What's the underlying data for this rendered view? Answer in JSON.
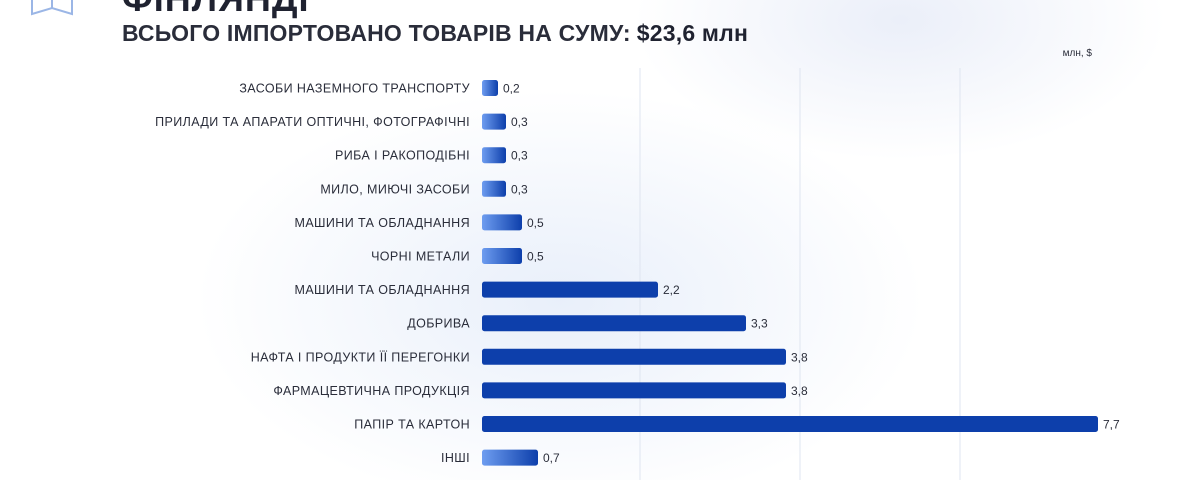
{
  "header": {
    "title_partial": "ФІНЛЯНДІ",
    "subtitle": "ВСЬОГО ІМПОРТОВАНО ТОВАРІВ НА СУМУ:",
    "total": "$23,6 млн"
  },
  "colors": {
    "bar_dark": "#0d3fab",
    "bar_light": "#6e9df0",
    "gridline": "#dfe5f0"
  },
  "icons": {
    "logo": "book-logo-icon"
  },
  "chart_data": {
    "type": "bar",
    "orientation": "horizontal",
    "unit_label": "млн, $",
    "categories": [
      "ЗАСОБИ НАЗЕМНОГО ТРАНСПОРТУ",
      "ПРИЛАДИ ТА АПАРАТИ ОПТИЧНІ, ФОТОГРАФІЧНІ",
      "РИБА І РАКОПОДІБНІ",
      "МИЛО, МИЮЧІ ЗАСОБИ",
      "МАШИНИ ТА ОБЛАДНАННЯ",
      "ЧОРНІ МЕТАЛИ",
      "МАШИНИ ТА ОБЛАДНАННЯ",
      "ДОБРИВА",
      "НАФТА І ПРОДУКТИ ЇЇ ПЕРЕГОНКИ",
      "ФАРМАЦЕВТИЧНА ПРОДУКЦІЯ",
      "ПАПІР ТА КАРТОН",
      "ІНШІ"
    ],
    "values": [
      0.2,
      0.3,
      0.3,
      0.3,
      0.5,
      0.5,
      2.2,
      3.3,
      3.8,
      3.8,
      7.7,
      0.7
    ],
    "value_labels": [
      "0,2",
      "0,3",
      "0,3",
      "0,3",
      "0,5",
      "0,5",
      "2,2",
      "3,3",
      "3,8",
      "3,8",
      "7,7",
      "0,7"
    ],
    "xlim": [
      0,
      7.7
    ],
    "grid": true,
    "legend": "none"
  }
}
